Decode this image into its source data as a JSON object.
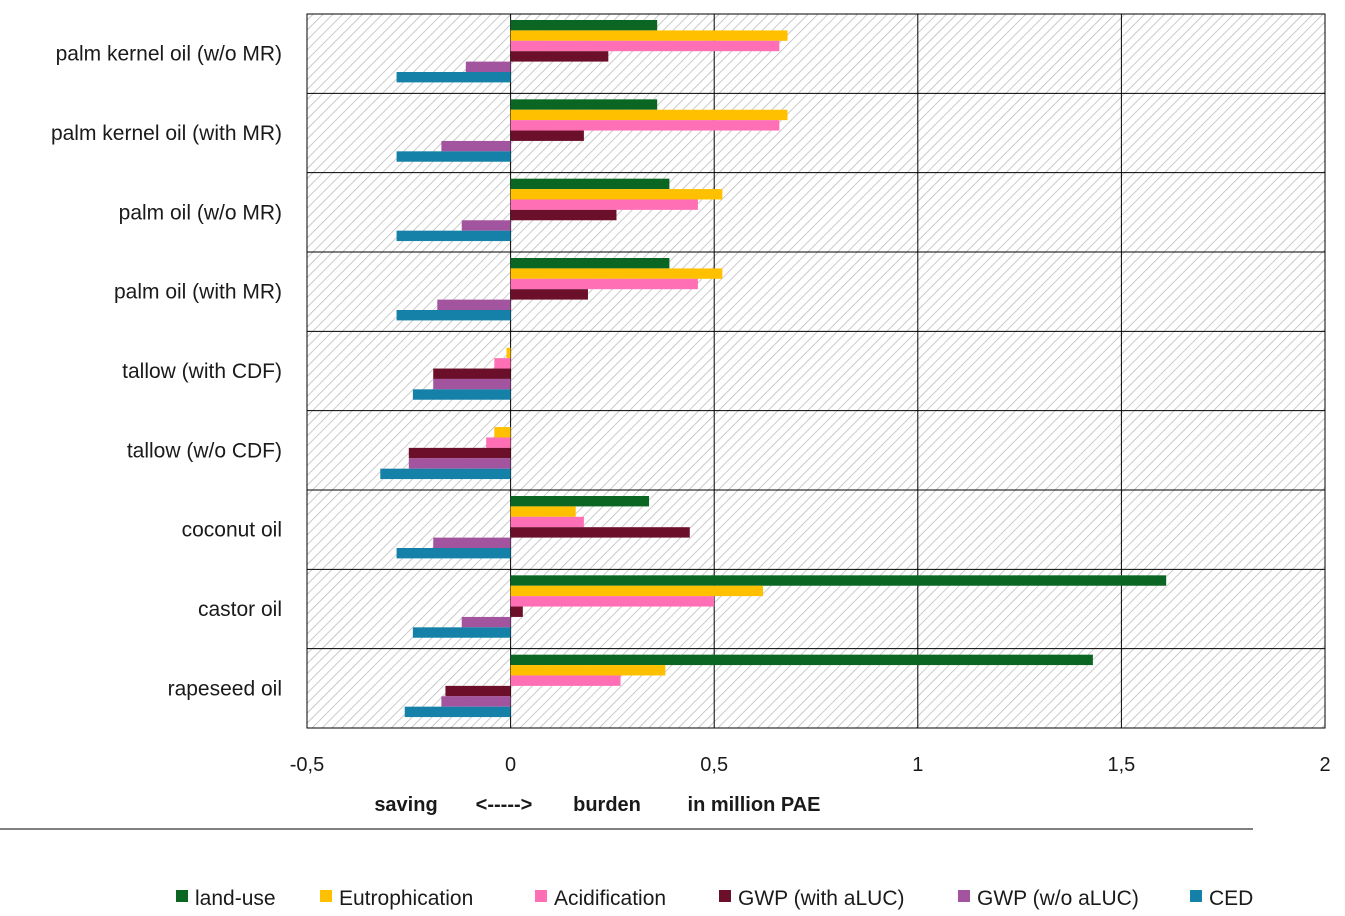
{
  "chart_data": {
    "type": "bar",
    "orientation": "horizontal",
    "title": "",
    "xlabel_parts": [
      "saving",
      "<----->",
      "burden",
      "in million PAE"
    ],
    "ylabel": "",
    "xlim": [
      -0.5,
      2
    ],
    "xticks": [
      -0.5,
      0,
      0.5,
      1,
      1.5,
      2
    ],
    "xtick_labels": [
      "-0,5",
      "0",
      "0,5",
      "1",
      "1,5",
      "2"
    ],
    "grid": true,
    "legend_position": "bottom",
    "categories": [
      "palm kernel oil (w/o MR)",
      "palm kernel oil (with MR)",
      "palm oil (w/o MR)",
      "palm oil (with MR)",
      "tallow (with CDF)",
      "tallow (w/o CDF)",
      "coconut oil",
      "castor oil",
      "rapeseed oil"
    ],
    "series": [
      {
        "name": "land-use",
        "color": "#0b6623",
        "values": [
          0.36,
          0.36,
          0.39,
          0.39,
          0,
          0,
          0.34,
          1.61,
          1.43
        ]
      },
      {
        "name": "Eutrophication",
        "color": "#ffc000",
        "values": [
          0.68,
          0.68,
          0.52,
          0.52,
          -0.01,
          -0.04,
          0.16,
          0.62,
          0.38
        ]
      },
      {
        "name": "Acidification",
        "color": "#ff6fb5",
        "values": [
          0.66,
          0.66,
          0.46,
          0.46,
          -0.04,
          -0.06,
          0.18,
          0.5,
          0.27
        ]
      },
      {
        "name": "GWP (with aLUC)",
        "color": "#6b0f2a",
        "values": [
          0.24,
          0.18,
          0.26,
          0.19,
          -0.19,
          -0.25,
          0.44,
          0.03,
          -0.16
        ]
      },
      {
        "name": "GWP (w/o aLUC)",
        "color": "#a3549e",
        "values": [
          -0.11,
          -0.17,
          -0.12,
          -0.18,
          -0.19,
          -0.25,
          -0.19,
          -0.12,
          -0.17
        ]
      },
      {
        "name": "CED",
        "color": "#1580a8",
        "values": [
          -0.28,
          -0.28,
          -0.28,
          -0.28,
          -0.24,
          -0.32,
          -0.28,
          -0.24,
          -0.26
        ]
      }
    ]
  }
}
